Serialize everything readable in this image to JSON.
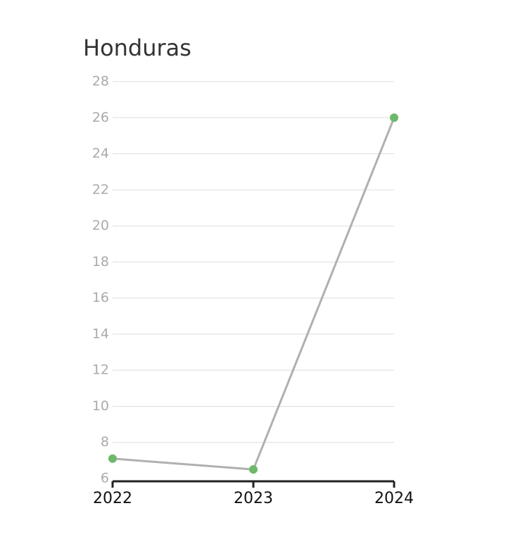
{
  "chart_data": {
    "type": "line",
    "title": "Honduras",
    "x": [
      2022,
      2023,
      2024
    ],
    "series": [
      {
        "name": "Honduras",
        "color": "#6db86a",
        "line_color": "#b0b0b0",
        "values": [
          7.1,
          6.5,
          26.0
        ]
      }
    ],
    "xlim": [
      2022,
      2024
    ],
    "xticks": [
      2022,
      2023,
      2024
    ],
    "ylim": [
      6,
      28
    ],
    "yticks": [
      6,
      8,
      10,
      12,
      14,
      16,
      18,
      20,
      22,
      24,
      26,
      28
    ],
    "grid": true
  }
}
